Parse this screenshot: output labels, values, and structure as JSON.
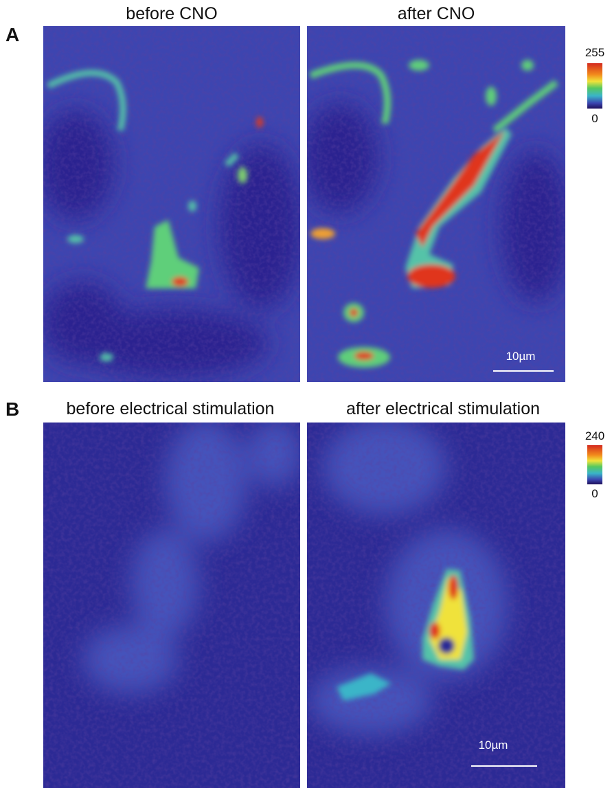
{
  "panels": [
    {
      "label": "A",
      "images": [
        {
          "title": "before CNO"
        },
        {
          "title": "after CNO",
          "scale_bar": "10µm"
        }
      ],
      "colorbar": {
        "max": "255",
        "min": "0"
      }
    },
    {
      "label": "B",
      "images": [
        {
          "title": "before electrical stimulation"
        },
        {
          "title": "after electrical stimulation",
          "scale_bar": "10µm"
        }
      ],
      "colorbar": {
        "max": "240",
        "min": "0"
      }
    }
  ]
}
